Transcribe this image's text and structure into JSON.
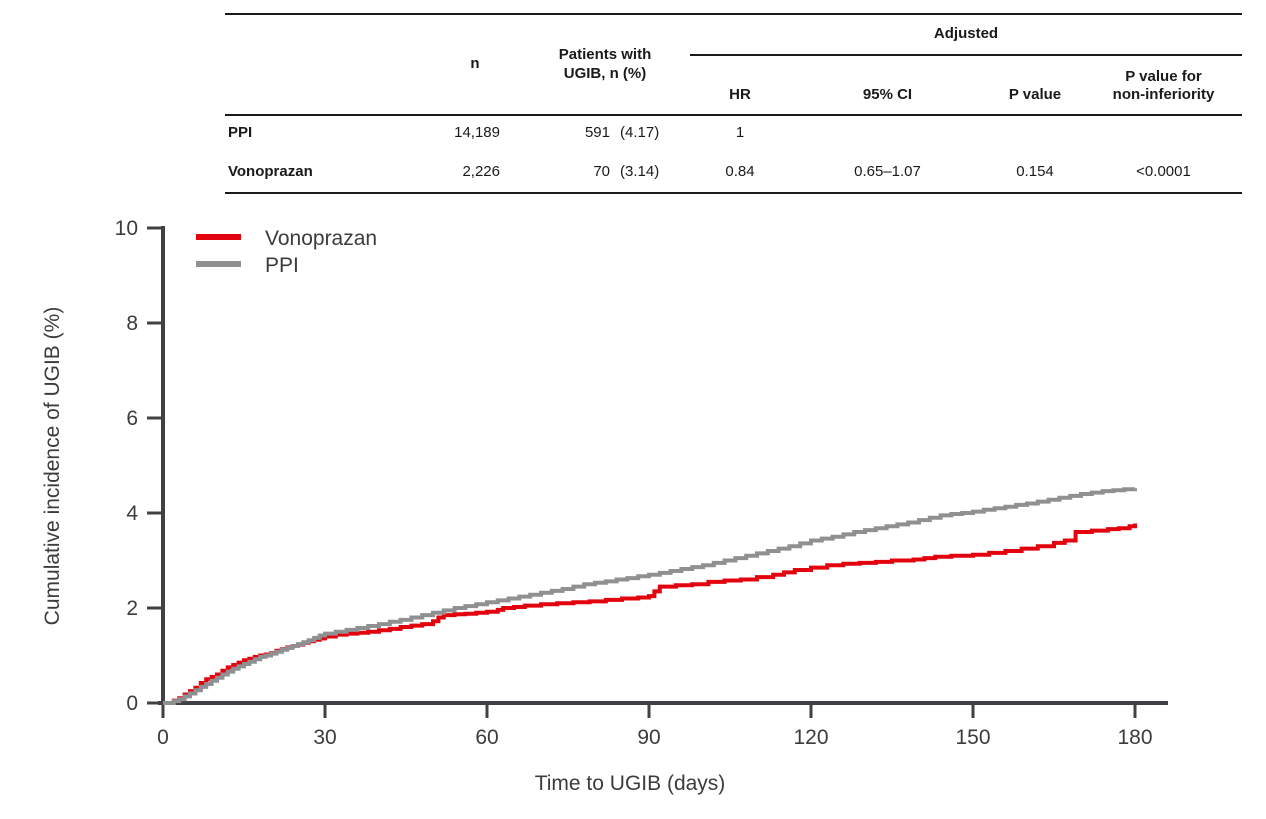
{
  "table": {
    "headers": {
      "n": "n",
      "patients_line1": "Patients with",
      "patients_line2": "UGIB, n (%)",
      "adjusted": "Adjusted",
      "hr": "HR",
      "ci": "95% CI",
      "p": "P value",
      "pni_line1": "P value for",
      "pni_line2": "non-inferiority"
    },
    "rows": [
      {
        "label": "PPI",
        "n": "14,189",
        "events": "591",
        "pct": "(4.17)",
        "hr": "1",
        "ci": "",
        "p": "",
        "pni": ""
      },
      {
        "label": "Vonoprazan",
        "n": "2,226",
        "events": "70",
        "pct": "(3.14)",
        "hr": "0.84",
        "ci": "0.65–1.07",
        "p": "0.154",
        "pni": "<0.0001"
      }
    ]
  },
  "chart_data": {
    "type": "line",
    "subtype": "step-cumulative-incidence",
    "title": "",
    "xlabel": "Time to UGIB (days)",
    "ylabel": "Cumulative incidence of UGIB (%)",
    "xlim": [
      0,
      186
    ],
    "ylim": [
      0,
      10
    ],
    "xticks": [
      0,
      30,
      60,
      90,
      120,
      150,
      180
    ],
    "yticks": [
      0,
      2,
      4,
      6,
      8,
      10
    ],
    "grid": false,
    "legend_position": "top-left",
    "colors": {
      "vonoprazan": "#e2030f",
      "ppi": "#8e9092",
      "axis": "#404045",
      "text": "#3c3c3c"
    },
    "series": [
      {
        "name": "Vonoprazan",
        "color": "#e2030f",
        "points": [
          [
            0,
            0
          ],
          [
            2,
            0.05
          ],
          [
            3,
            0.1
          ],
          [
            4,
            0.18
          ],
          [
            5,
            0.25
          ],
          [
            6,
            0.32
          ],
          [
            7,
            0.42
          ],
          [
            8,
            0.5
          ],
          [
            9,
            0.55
          ],
          [
            10,
            0.6
          ],
          [
            11,
            0.68
          ],
          [
            12,
            0.75
          ],
          [
            13,
            0.8
          ],
          [
            14,
            0.85
          ],
          [
            15,
            0.9
          ],
          [
            16,
            0.93
          ],
          [
            17,
            0.97
          ],
          [
            18,
            1.0
          ],
          [
            19,
            1.02
          ],
          [
            20,
            1.05
          ],
          [
            21,
            1.1
          ],
          [
            22,
            1.13
          ],
          [
            23,
            1.17
          ],
          [
            24,
            1.2
          ],
          [
            25,
            1.23
          ],
          [
            26,
            1.27
          ],
          [
            27,
            1.3
          ],
          [
            28,
            1.33
          ],
          [
            29,
            1.36
          ],
          [
            30,
            1.4
          ],
          [
            32,
            1.44
          ],
          [
            34,
            1.46
          ],
          [
            36,
            1.48
          ],
          [
            38,
            1.5
          ],
          [
            40,
            1.53
          ],
          [
            42,
            1.56
          ],
          [
            44,
            1.6
          ],
          [
            46,
            1.63
          ],
          [
            48,
            1.66
          ],
          [
            50,
            1.72
          ],
          [
            51,
            1.8
          ],
          [
            52,
            1.85
          ],
          [
            54,
            1.87
          ],
          [
            56,
            1.88
          ],
          [
            58,
            1.9
          ],
          [
            60,
            1.92
          ],
          [
            62,
            1.96
          ],
          [
            63,
            2.0
          ],
          [
            65,
            2.02
          ],
          [
            67,
            2.05
          ],
          [
            70,
            2.08
          ],
          [
            73,
            2.1
          ],
          [
            76,
            2.12
          ],
          [
            79,
            2.14
          ],
          [
            82,
            2.17
          ],
          [
            85,
            2.2
          ],
          [
            88,
            2.22
          ],
          [
            90,
            2.25
          ],
          [
            91,
            2.35
          ],
          [
            92,
            2.45
          ],
          [
            95,
            2.48
          ],
          [
            98,
            2.5
          ],
          [
            101,
            2.55
          ],
          [
            104,
            2.58
          ],
          [
            107,
            2.6
          ],
          [
            110,
            2.65
          ],
          [
            113,
            2.7
          ],
          [
            115,
            2.75
          ],
          [
            117,
            2.8
          ],
          [
            120,
            2.85
          ],
          [
            123,
            2.9
          ],
          [
            126,
            2.93
          ],
          [
            129,
            2.95
          ],
          [
            132,
            2.97
          ],
          [
            135,
            3.0
          ],
          [
            139,
            3.02
          ],
          [
            141,
            3.05
          ],
          [
            143,
            3.08
          ],
          [
            146,
            3.1
          ],
          [
            150,
            3.12
          ],
          [
            153,
            3.16
          ],
          [
            156,
            3.2
          ],
          [
            159,
            3.25
          ],
          [
            162,
            3.3
          ],
          [
            165,
            3.37
          ],
          [
            167,
            3.42
          ],
          [
            169,
            3.6
          ],
          [
            172,
            3.63
          ],
          [
            175,
            3.66
          ],
          [
            177,
            3.68
          ],
          [
            179,
            3.72
          ],
          [
            180,
            3.78
          ]
        ]
      },
      {
        "name": "PPI",
        "color": "#8e9092",
        "points": [
          [
            0,
            0
          ],
          [
            2,
            0.04
          ],
          [
            3,
            0.08
          ],
          [
            4,
            0.14
          ],
          [
            5,
            0.2
          ],
          [
            6,
            0.27
          ],
          [
            7,
            0.34
          ],
          [
            8,
            0.4
          ],
          [
            9,
            0.47
          ],
          [
            10,
            0.53
          ],
          [
            11,
            0.6
          ],
          [
            12,
            0.66
          ],
          [
            13,
            0.72
          ],
          [
            14,
            0.77
          ],
          [
            15,
            0.82
          ],
          [
            16,
            0.87
          ],
          [
            17,
            0.92
          ],
          [
            18,
            0.97
          ],
          [
            19,
            1.0
          ],
          [
            20,
            1.04
          ],
          [
            21,
            1.08
          ],
          [
            22,
            1.12
          ],
          [
            23,
            1.16
          ],
          [
            24,
            1.2
          ],
          [
            25,
            1.24
          ],
          [
            26,
            1.28
          ],
          [
            27,
            1.32
          ],
          [
            28,
            1.37
          ],
          [
            29,
            1.42
          ],
          [
            30,
            1.46
          ],
          [
            32,
            1.5
          ],
          [
            34,
            1.54
          ],
          [
            36,
            1.58
          ],
          [
            38,
            1.62
          ],
          [
            40,
            1.66
          ],
          [
            42,
            1.71
          ],
          [
            44,
            1.75
          ],
          [
            46,
            1.8
          ],
          [
            48,
            1.85
          ],
          [
            50,
            1.9
          ],
          [
            52,
            1.95
          ],
          [
            54,
            2.0
          ],
          [
            56,
            2.04
          ],
          [
            58,
            2.08
          ],
          [
            60,
            2.12
          ],
          [
            62,
            2.16
          ],
          [
            64,
            2.2
          ],
          [
            66,
            2.24
          ],
          [
            68,
            2.28
          ],
          [
            70,
            2.32
          ],
          [
            72,
            2.36
          ],
          [
            74,
            2.4
          ],
          [
            76,
            2.45
          ],
          [
            78,
            2.5
          ],
          [
            80,
            2.53
          ],
          [
            82,
            2.56
          ],
          [
            84,
            2.6
          ],
          [
            86,
            2.63
          ],
          [
            88,
            2.67
          ],
          [
            90,
            2.7
          ],
          [
            92,
            2.74
          ],
          [
            94,
            2.78
          ],
          [
            96,
            2.82
          ],
          [
            98,
            2.86
          ],
          [
            100,
            2.9
          ],
          [
            102,
            2.95
          ],
          [
            104,
            3.0
          ],
          [
            106,
            3.05
          ],
          [
            108,
            3.1
          ],
          [
            110,
            3.15
          ],
          [
            112,
            3.2
          ],
          [
            114,
            3.25
          ],
          [
            116,
            3.3
          ],
          [
            118,
            3.36
          ],
          [
            120,
            3.42
          ],
          [
            122,
            3.46
          ],
          [
            124,
            3.5
          ],
          [
            126,
            3.55
          ],
          [
            128,
            3.6
          ],
          [
            130,
            3.64
          ],
          [
            132,
            3.68
          ],
          [
            134,
            3.72
          ],
          [
            136,
            3.76
          ],
          [
            138,
            3.8
          ],
          [
            140,
            3.85
          ],
          [
            142,
            3.9
          ],
          [
            144,
            3.95
          ],
          [
            146,
            3.98
          ],
          [
            148,
            4.0
          ],
          [
            150,
            4.03
          ],
          [
            152,
            4.07
          ],
          [
            154,
            4.1
          ],
          [
            156,
            4.13
          ],
          [
            158,
            4.17
          ],
          [
            160,
            4.2
          ],
          [
            162,
            4.24
          ],
          [
            164,
            4.28
          ],
          [
            166,
            4.32
          ],
          [
            168,
            4.36
          ],
          [
            170,
            4.4
          ],
          [
            172,
            4.43
          ],
          [
            174,
            4.46
          ],
          [
            176,
            4.48
          ],
          [
            178,
            4.5
          ],
          [
            180,
            4.52
          ]
        ]
      }
    ]
  }
}
